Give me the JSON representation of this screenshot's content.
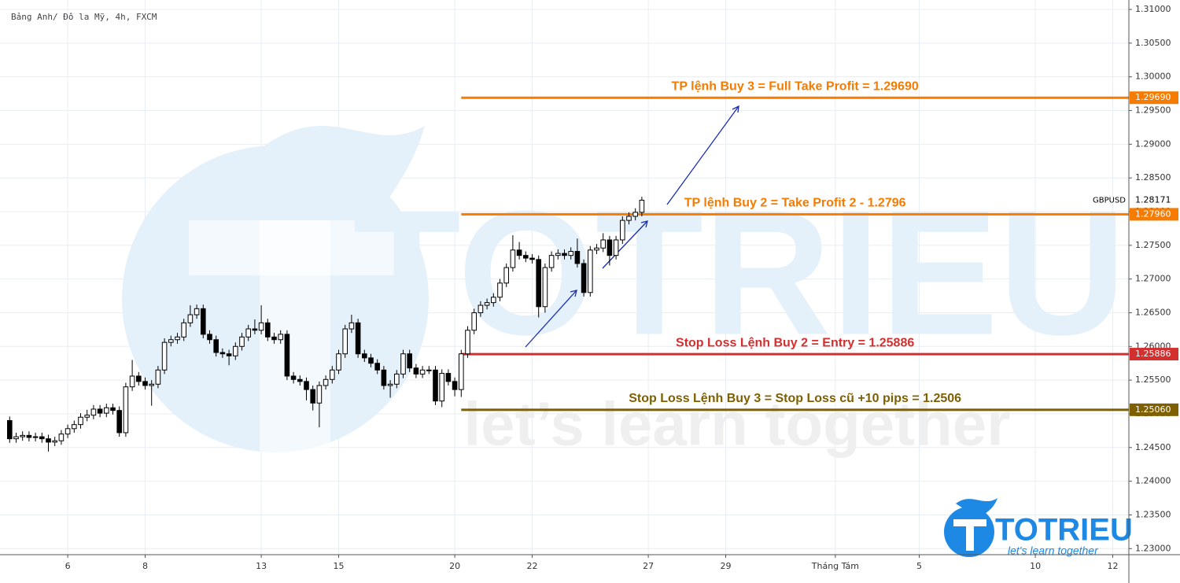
{
  "chart_data": {
    "type": "candlestick",
    "title": "Bảng Anh/ Đô la Mỹ, 4h, FXCM",
    "symbol": "GBPUSD",
    "last_price": {
      "value": 1.28171,
      "label": "1.28171"
    },
    "up_color": "#ffffff",
    "down_color": "#000000",
    "grid": true,
    "x": [
      0,
      1,
      2,
      3,
      4,
      5,
      6,
      7,
      8,
      9,
      10,
      11,
      12,
      13,
      14,
      15,
      16,
      17,
      18,
      19,
      20,
      21,
      22,
      23,
      24,
      25,
      26,
      27,
      28,
      29,
      30,
      31,
      32,
      33,
      34,
      35,
      36,
      37,
      38,
      39,
      40,
      41,
      42,
      43,
      44,
      45,
      46,
      47,
      48,
      49,
      50,
      51,
      52,
      53,
      54,
      55,
      56,
      57,
      58,
      59,
      60,
      61,
      62,
      63,
      64,
      65,
      66,
      67,
      68,
      69,
      70,
      71,
      72,
      73,
      74,
      75,
      76,
      77,
      78,
      79,
      80,
      81,
      82,
      83,
      84,
      85,
      86,
      87,
      88,
      89,
      90,
      91,
      92,
      93,
      94,
      95,
      96,
      97,
      98
    ],
    "open": [
      1.249,
      1.2463,
      1.2466,
      1.2468,
      1.2465,
      1.2466,
      1.2463,
      1.2458,
      1.246,
      1.247,
      1.2478,
      1.2484,
      1.2495,
      1.2498,
      1.2507,
      1.2501,
      1.2509,
      1.2505,
      1.2472,
      1.254,
      1.2556,
      1.2548,
      1.2542,
      1.2544,
      1.2565,
      1.2606,
      1.261,
      1.2614,
      1.2635,
      1.2647,
      1.2656,
      1.2618,
      1.261,
      1.2591,
      1.2589,
      1.2586,
      1.26,
      1.2614,
      1.2626,
      1.2624,
      1.2635,
      1.2614,
      1.261,
      1.2618,
      1.2556,
      1.2551,
      1.2548,
      1.2536,
      1.2516,
      1.2542,
      1.2551,
      1.2565,
      1.2589,
      1.2626,
      1.2635,
      1.2589,
      1.2583,
      1.2575,
      1.2565,
      1.2542,
      1.2544,
      1.2559,
      1.2589,
      1.2568,
      1.2559,
      1.2565,
      1.2565,
      1.2519,
      1.256,
      1.2548,
      1.2536,
      1.2589,
      1.2624,
      1.265,
      1.2661,
      1.2665,
      1.2673,
      1.2694,
      1.2717,
      1.2743,
      1.2735,
      1.2731,
      1.2729,
      1.2659,
      1.2717,
      1.2735,
      1.2738,
      1.2735,
      1.2741,
      1.2723,
      1.268,
      1.2743,
      1.2746,
      1.2758,
      1.2735,
      1.2758,
      1.2787,
      1.2793,
      1.2799
    ],
    "high": [
      1.2496,
      1.2472,
      1.2474,
      1.2474,
      1.2472,
      1.2472,
      1.2469,
      1.2466,
      1.2476,
      1.2484,
      1.249,
      1.2501,
      1.2506,
      1.2513,
      1.2513,
      1.2515,
      1.2515,
      1.2511,
      1.2546,
      1.258,
      1.2562,
      1.2554,
      1.255,
      1.2571,
      1.2612,
      1.2616,
      1.262,
      1.2641,
      1.2661,
      1.2662,
      1.2662,
      1.2624,
      1.2616,
      1.2597,
      1.2595,
      1.2606,
      1.262,
      1.2632,
      1.264,
      1.2661,
      1.2641,
      1.262,
      1.2624,
      1.2624,
      1.2562,
      1.2557,
      1.2554,
      1.2542,
      1.2548,
      1.2557,
      1.2571,
      1.2595,
      1.2632,
      1.2647,
      1.2641,
      1.2595,
      1.2589,
      1.2581,
      1.2571,
      1.255,
      1.2565,
      1.2595,
      1.2595,
      1.2574,
      1.2571,
      1.2571,
      1.2571,
      1.2566,
      1.2566,
      1.2554,
      1.2595,
      1.263,
      1.2656,
      1.2667,
      1.2671,
      1.2679,
      1.27,
      1.2723,
      1.2765,
      1.2755,
      1.2741,
      1.2737,
      1.2735,
      1.2723,
      1.2741,
      1.2744,
      1.2744,
      1.2747,
      1.276,
      1.2729,
      1.2749,
      1.2752,
      1.2768,
      1.2764,
      1.2764,
      1.2793,
      1.2799,
      1.2805,
      1.2822
    ],
    "low": [
      1.2457,
      1.2457,
      1.246,
      1.2459,
      1.2459,
      1.2457,
      1.2444,
      1.2452,
      1.2454,
      1.2464,
      1.2472,
      1.2478,
      1.2489,
      1.2492,
      1.2495,
      1.2495,
      1.2499,
      1.2466,
      1.2466,
      1.2534,
      1.2542,
      1.2536,
      1.2512,
      1.2538,
      1.2559,
      1.26,
      1.2604,
      1.2608,
      1.2629,
      1.2641,
      1.2612,
      1.2604,
      1.2585,
      1.2583,
      1.2572,
      1.258,
      1.2594,
      1.2608,
      1.2618,
      1.2618,
      1.2608,
      1.2604,
      1.2604,
      1.255,
      1.2545,
      1.2542,
      1.252,
      1.2505,
      1.248,
      1.2536,
      1.2545,
      1.2559,
      1.2583,
      1.262,
      1.2583,
      1.2577,
      1.2569,
      1.2559,
      1.2536,
      1.2524,
      1.2538,
      1.2553,
      1.2562,
      1.2553,
      1.2553,
      1.2559,
      1.2513,
      1.251,
      1.2542,
      1.2526,
      1.2525,
      1.2583,
      1.2618,
      1.2644,
      1.2655,
      1.2659,
      1.2667,
      1.2688,
      1.2711,
      1.2729,
      1.2725,
      1.2723,
      1.2643,
      1.265,
      1.2711,
      1.2729,
      1.2729,
      1.2729,
      1.2717,
      1.2674,
      1.2674,
      1.2737,
      1.274,
      1.272,
      1.2729,
      1.2752,
      1.2781,
      1.2787,
      1.2793
    ],
    "close": [
      1.2463,
      1.2466,
      1.2468,
      1.2465,
      1.2466,
      1.2463,
      1.2458,
      1.246,
      1.247,
      1.2478,
      1.2484,
      1.2495,
      1.2498,
      1.2507,
      1.2501,
      1.2509,
      1.2505,
      1.2472,
      1.254,
      1.2556,
      1.2548,
      1.2542,
      1.2544,
      1.2565,
      1.2606,
      1.261,
      1.2614,
      1.2635,
      1.2647,
      1.2656,
      1.2618,
      1.261,
      1.2591,
      1.2589,
      1.2586,
      1.26,
      1.2614,
      1.2626,
      1.2624,
      1.2635,
      1.2614,
      1.261,
      1.2618,
      1.2556,
      1.2551,
      1.2548,
      1.2536,
      1.2516,
      1.2542,
      1.2551,
      1.2565,
      1.2589,
      1.2626,
      1.2635,
      1.2589,
      1.2583,
      1.2575,
      1.2565,
      1.2542,
      1.2544,
      1.2559,
      1.2589,
      1.2568,
      1.2559,
      1.2565,
      1.2565,
      1.2519,
      1.256,
      1.2548,
      1.2536,
      1.2589,
      1.2624,
      1.265,
      1.2661,
      1.2665,
      1.2673,
      1.2694,
      1.2717,
      1.2743,
      1.2735,
      1.2731,
      1.2729,
      1.2659,
      1.2717,
      1.2735,
      1.2738,
      1.2735,
      1.2741,
      1.2723,
      1.268,
      1.2743,
      1.2746,
      1.2758,
      1.2735,
      1.2758,
      1.2787,
      1.2793,
      1.2799,
      1.2817
    ],
    "xlim": [
      -1.5,
      173.5
    ],
    "xticks": [
      {
        "value": 9,
        "label": "6"
      },
      {
        "value": 21,
        "label": "8"
      },
      {
        "value": 39,
        "label": "13"
      },
      {
        "value": 51,
        "label": "15"
      },
      {
        "value": 69,
        "label": "20"
      },
      {
        "value": 81,
        "label": "22"
      },
      {
        "value": 99,
        "label": "27"
      },
      {
        "value": 111,
        "label": "29"
      },
      {
        "value": 128,
        "label": "Tháng Tám"
      },
      {
        "value": 141,
        "label": "5"
      },
      {
        "value": 159,
        "label": "10"
      },
      {
        "value": 171,
        "label": "12"
      }
    ],
    "ylim": [
      1.2291,
      1.3114
    ],
    "yticks": [
      {
        "value": 1.23,
        "label": "1.23000"
      },
      {
        "value": 1.235,
        "label": "1.23500"
      },
      {
        "value": 1.24,
        "label": "1.24000"
      },
      {
        "value": 1.245,
        "label": "1.24500"
      },
      {
        "value": 1.25,
        "label": "1.25000"
      },
      {
        "value": 1.255,
        "label": "1.25500"
      },
      {
        "value": 1.26,
        "label": "1.26000"
      },
      {
        "value": 1.265,
        "label": "1.26500"
      },
      {
        "value": 1.27,
        "label": "1.27000"
      },
      {
        "value": 1.275,
        "label": "1.27500"
      },
      {
        "value": 1.28,
        "label": "1.28000"
      },
      {
        "value": 1.285,
        "label": "1.28500"
      },
      {
        "value": 1.29,
        "label": "1.29000"
      },
      {
        "value": 1.295,
        "label": "1.29500"
      },
      {
        "value": 1.3,
        "label": "1.30000"
      },
      {
        "value": 1.305,
        "label": "1.30500"
      },
      {
        "value": 1.31,
        "label": "1.31000"
      }
    ],
    "levels": [
      {
        "value": 1.2969,
        "label": "1.29690",
        "color": "#f57c00",
        "x_start": 70,
        "text": "TP lệnh Buy 3 = Full Take Profit = 1.29690"
      },
      {
        "value": 1.2796,
        "label": "1.27960",
        "color": "#f57c00",
        "x_start": 70,
        "text": "TP lệnh Buy 2 = Take Profit 2 - 1.2796"
      },
      {
        "value": 1.25886,
        "label": "1.25886",
        "color": "#d32f2f",
        "x_start": 70,
        "text": "Stop Loss Lệnh Buy 2 = Entry = 1.25886"
      },
      {
        "value": 1.2506,
        "label": "1.25060",
        "color": "#7f6000",
        "x_start": 70,
        "text": "Stop Loss Lệnh Buy 3 = Stop Loss cũ +10 pips = 1.2506"
      }
    ]
  },
  "watermark": {
    "brand": "TOTRIEU",
    "slogan": "let’s learn together"
  },
  "logo": {
    "brand": "TOTRIEU",
    "slogan": "let's learn together"
  }
}
